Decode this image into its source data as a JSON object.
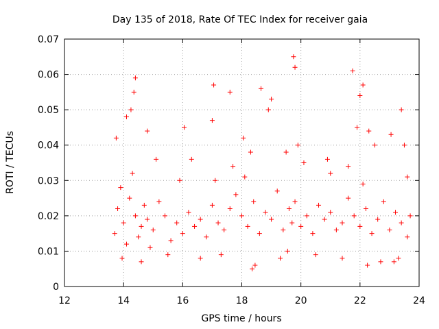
{
  "chart_data": {
    "type": "scatter",
    "title": "Day 135 of 2018, Rate Of TEC Index for receiver gaia",
    "xlabel": "GPS time / hours",
    "ylabel": "ROTI / TECUs",
    "xlim": [
      12,
      24
    ],
    "ylim": [
      0,
      0.07
    ],
    "xticks": [
      "12",
      "14",
      "16",
      "18",
      "20",
      "22",
      "24"
    ],
    "yticks": [
      "0",
      "0.01",
      "0.02",
      "0.03",
      "0.04",
      "0.05",
      "0.06",
      "0.07"
    ],
    "grid": true,
    "marker": "plus",
    "color": "#ff0000",
    "series": [
      {
        "x": [
          13.7,
          13.8,
          13.9,
          14.0,
          14.1,
          14.2,
          14.3,
          14.4,
          14.5,
          14.6,
          14.7,
          14.8,
          14.9,
          15.0,
          15.2,
          15.4,
          15.6,
          15.8,
          16.0,
          16.2,
          16.4,
          16.6,
          16.8,
          17.0,
          17.1,
          17.2,
          17.4,
          17.6,
          17.8,
          18.0,
          18.1,
          18.2,
          18.4,
          18.6,
          18.8,
          19.0,
          19.2,
          19.4,
          19.6,
          19.7,
          19.8,
          20.0,
          20.2,
          20.4,
          20.6,
          20.8,
          21.0,
          21.2,
          21.4,
          21.6,
          21.8,
          22.0,
          22.1,
          22.2,
          22.4,
          22.6,
          22.8,
          23.0,
          23.2,
          23.4,
          23.6,
          23.7,
          14.35,
          14.4,
          17.05,
          17.6,
          18.65,
          19.0,
          19.75,
          19.8,
          21.75,
          22.0,
          22.1,
          23.4,
          13.75,
          14.1,
          15.1,
          16.05,
          16.3,
          17.0,
          18.05,
          18.9,
          19.5,
          20.1,
          21.0,
          21.9,
          22.5,
          23.05,
          23.5,
          13.95,
          14.6,
          15.5,
          16.6,
          17.3,
          18.45,
          19.3,
          20.5,
          21.4,
          22.7,
          23.3,
          14.8,
          15.9,
          17.7,
          18.3,
          19.9,
          20.9,
          21.6,
          22.3,
          23.6,
          14.25,
          18.35,
          19.55,
          22.25,
          23.15
        ],
        "y": [
          0.015,
          0.022,
          0.028,
          0.018,
          0.012,
          0.025,
          0.032,
          0.02,
          0.014,
          0.017,
          0.023,
          0.019,
          0.011,
          0.016,
          0.024,
          0.02,
          0.013,
          0.018,
          0.015,
          0.021,
          0.017,
          0.019,
          0.014,
          0.023,
          0.03,
          0.018,
          0.016,
          0.022,
          0.026,
          0.02,
          0.031,
          0.017,
          0.024,
          0.015,
          0.021,
          0.019,
          0.027,
          0.016,
          0.022,
          0.018,
          0.024,
          0.017,
          0.02,
          0.015,
          0.023,
          0.019,
          0.021,
          0.016,
          0.018,
          0.025,
          0.02,
          0.017,
          0.029,
          0.022,
          0.015,
          0.019,
          0.024,
          0.016,
          0.021,
          0.018,
          0.014,
          0.02,
          0.055,
          0.059,
          0.057,
          0.055,
          0.056,
          0.053,
          0.065,
          0.062,
          0.061,
          0.054,
          0.057,
          0.05,
          0.042,
          0.048,
          0.036,
          0.045,
          0.036,
          0.047,
          0.042,
          0.05,
          0.038,
          0.035,
          0.032,
          0.045,
          0.04,
          0.043,
          0.04,
          0.008,
          0.007,
          0.009,
          0.008,
          0.009,
          0.006,
          0.008,
          0.009,
          0.008,
          0.007,
          0.008,
          0.044,
          0.03,
          0.034,
          0.038,
          0.04,
          0.036,
          0.034,
          0.044,
          0.031,
          0.05,
          0.005,
          0.01,
          0.006,
          0.007
        ]
      }
    ]
  }
}
